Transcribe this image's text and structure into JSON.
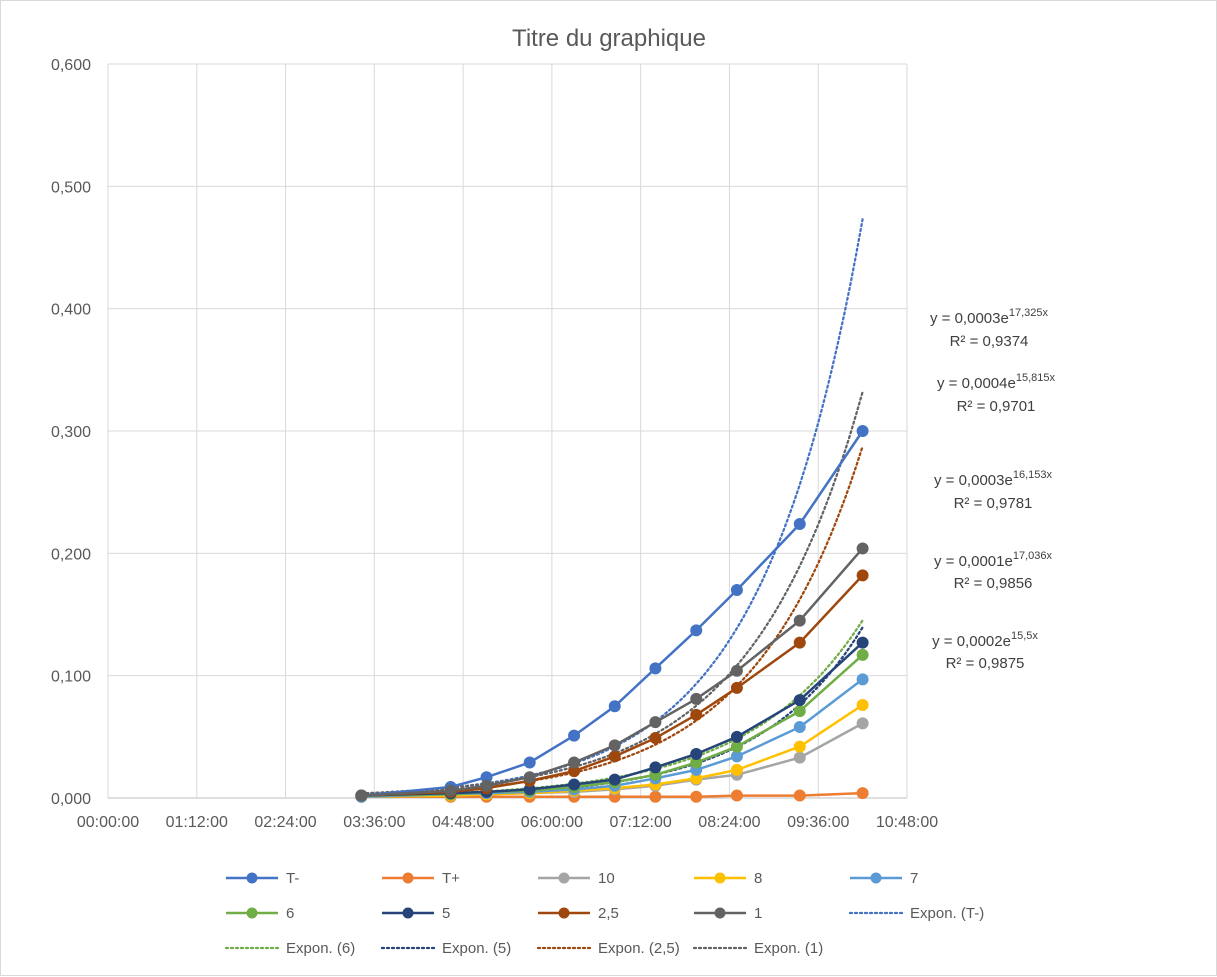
{
  "chart_data": {
    "type": "line",
    "title": "Titre du graphique",
    "xlabel": "",
    "ylabel": "",
    "x_is_time_of_day": true,
    "xlim": [
      0,
      0.45
    ],
    "ylim": [
      0,
      0.6
    ],
    "x_tick_labels": [
      "00:00:00",
      "01:12:00",
      "02:24:00",
      "03:36:00",
      "04:48:00",
      "06:00:00",
      "07:12:00",
      "08:24:00",
      "09:36:00",
      "10:48:00"
    ],
    "y_tick_labels": [
      "0,000",
      "0,100",
      "0,200",
      "0,300",
      "0,400",
      "0,500",
      "0,600"
    ],
    "x_ticks": [
      0,
      0.05,
      0.1,
      0.15,
      0.2,
      0.25,
      0.3,
      0.35,
      0.4,
      0.45
    ],
    "y_ticks": [
      0,
      0.1,
      0.2,
      0.3,
      0.4,
      0.5,
      0.6
    ],
    "grid": true,
    "legend_position": "bottom",
    "series": [
      {
        "name": "T-",
        "color": "#4472C4",
        "marker": true,
        "x": [
          0.1427,
          0.193,
          0.2132,
          0.2375,
          0.2625,
          0.2854,
          0.3083,
          0.3313,
          0.3542,
          0.3896,
          0.425
        ],
        "y": [
          0.002,
          0.009,
          0.017,
          0.029,
          0.051,
          0.075,
          0.106,
          0.137,
          0.17,
          0.224,
          0.3
        ]
      },
      {
        "name": "T+",
        "color": "#ED7D31",
        "marker": true,
        "x": [
          0.1427,
          0.193,
          0.2132,
          0.2375,
          0.2625,
          0.2854,
          0.3083,
          0.3313,
          0.3542,
          0.3896,
          0.425
        ],
        "y": [
          0.001,
          0.001,
          0.001,
          0.001,
          0.001,
          0.001,
          0.001,
          0.001,
          0.002,
          0.002,
          0.004
        ]
      },
      {
        "name": "10",
        "color": "#A5A5A5",
        "marker": true,
        "x": [
          0.1427,
          0.193,
          0.2132,
          0.2375,
          0.2625,
          0.2854,
          0.3083,
          0.3313,
          0.3542,
          0.3896,
          0.425
        ],
        "y": [
          0.001,
          0.002,
          0.003,
          0.004,
          0.005,
          0.007,
          0.01,
          0.015,
          0.019,
          0.033,
          0.061
        ]
      },
      {
        "name": "8",
        "color": "#FFC000",
        "marker": true,
        "x": [
          0.1427,
          0.193,
          0.2132,
          0.2375,
          0.2625,
          0.2854,
          0.3083,
          0.3313,
          0.3542,
          0.3896,
          0.425
        ],
        "y": [
          0.001,
          0.002,
          0.003,
          0.004,
          0.006,
          0.008,
          0.011,
          0.016,
          0.023,
          0.042,
          0.076
        ]
      },
      {
        "name": "7",
        "color": "#5B9BD5",
        "marker": true,
        "x": [
          0.1427,
          0.193,
          0.2132,
          0.2375,
          0.2625,
          0.2854,
          0.3083,
          0.3313,
          0.3542,
          0.3896,
          0.425
        ],
        "y": [
          0.001,
          0.003,
          0.004,
          0.005,
          0.007,
          0.01,
          0.016,
          0.023,
          0.034,
          0.058,
          0.097
        ]
      },
      {
        "name": "6",
        "color": "#70AD47",
        "marker": true,
        "x": [
          0.1427,
          0.193,
          0.2132,
          0.2375,
          0.2625,
          0.2854,
          0.3083,
          0.3313,
          0.3542,
          0.3896,
          0.425
        ],
        "y": [
          0.002,
          0.003,
          0.005,
          0.006,
          0.009,
          0.013,
          0.019,
          0.029,
          0.042,
          0.071,
          0.117
        ]
      },
      {
        "name": "5",
        "color": "#264478",
        "marker": true,
        "x": [
          0.1427,
          0.193,
          0.2132,
          0.2375,
          0.2625,
          0.2854,
          0.3083,
          0.3313,
          0.3542,
          0.3896,
          0.425
        ],
        "y": [
          0.002,
          0.004,
          0.005,
          0.007,
          0.011,
          0.015,
          0.025,
          0.036,
          0.05,
          0.08,
          0.127
        ]
      },
      {
        "name": "2,5",
        "color": "#9E480E",
        "marker": true,
        "x": [
          0.1427,
          0.193,
          0.2132,
          0.2375,
          0.2625,
          0.2854,
          0.3083,
          0.3313,
          0.3542,
          0.3896,
          0.425
        ],
        "y": [
          0.002,
          0.005,
          0.008,
          0.014,
          0.022,
          0.034,
          0.049,
          0.068,
          0.09,
          0.127,
          0.182
        ]
      },
      {
        "name": "1",
        "color": "#636363",
        "marker": true,
        "x": [
          0.1427,
          0.193,
          0.2132,
          0.2375,
          0.2625,
          0.2854,
          0.3083,
          0.3313,
          0.3542,
          0.3896,
          0.425
        ],
        "y": [
          0.002,
          0.006,
          0.01,
          0.017,
          0.029,
          0.043,
          0.062,
          0.081,
          0.104,
          0.145,
          0.204
        ]
      }
    ],
    "trendlines": [
      {
        "name": "Expon. (T-)",
        "color": "#4472C4",
        "a": 0.0003,
        "b": 17.325,
        "equation": "y = 0,0003e",
        "exponent": "17,325x",
        "r2": "R² = 0,9374"
      },
      {
        "name": "Expon. (6)",
        "color": "#70AD47",
        "a": 0.0002,
        "b": 15.5,
        "equation": "y = 0,0002e",
        "exponent": "15,5x",
        "r2": "R² = 0,9875"
      },
      {
        "name": "Expon. (5)",
        "color": "#264478",
        "a": 0.0001,
        "b": 17.036,
        "equation": "y = 0,0001e",
        "exponent": "17,036x",
        "r2": "R² = 0,9856"
      },
      {
        "name": "Expon. (2,5)",
        "color": "#9E480E",
        "a": 0.0003,
        "b": 16.153,
        "equation": "y = 0,0003e",
        "exponent": "16,153x",
        "r2": "R² = 0,9781"
      },
      {
        "name": "Expon. (1)",
        "color": "#636363",
        "a": 0.0004,
        "b": 15.815,
        "equation": "y = 0,0004e",
        "exponent": "15,815x",
        "r2": "R² = 0,9701"
      }
    ],
    "legend_order": [
      "T-",
      "T+",
      "10",
      "8",
      "7",
      "6",
      "5",
      "2,5",
      "1",
      "Expon. (T-)",
      "Expon. (6)",
      "Expon. (5)",
      "Expon. (2,5)",
      "Expon. (1)"
    ]
  }
}
